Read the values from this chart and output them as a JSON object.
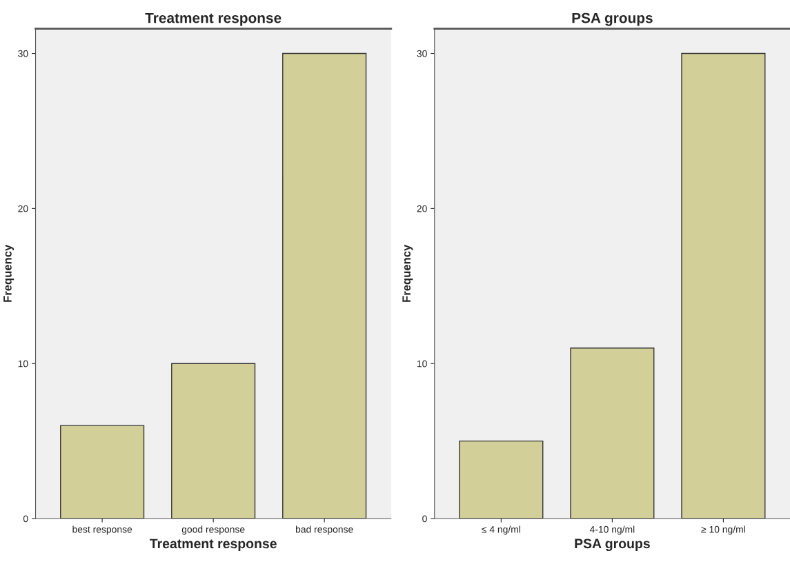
{
  "chart_data": [
    {
      "type": "bar",
      "title": "Treatment response",
      "xlabel": "Treatment response",
      "ylabel": "Frequency",
      "categories": [
        "best response",
        "good response",
        "bad response"
      ],
      "values": [
        6,
        10,
        30
      ],
      "color": "#d3cf98",
      "ylim": [
        0,
        31.6
      ],
      "yticks": [
        0,
        10,
        20,
        30
      ],
      "grid": false
    },
    {
      "type": "bar",
      "title": "PSA groups",
      "xlabel": "PSA groups",
      "ylabel": "Frequency",
      "categories": [
        "≤ 4 ng/ml",
        "4-10 ng/ml",
        "≥ 10 ng/ml"
      ],
      "values": [
        5,
        11,
        30
      ],
      "color": "#d3cf98",
      "ylim": [
        0,
        31.6
      ],
      "yticks": [
        0,
        10,
        20,
        30
      ],
      "grid": false
    }
  ]
}
